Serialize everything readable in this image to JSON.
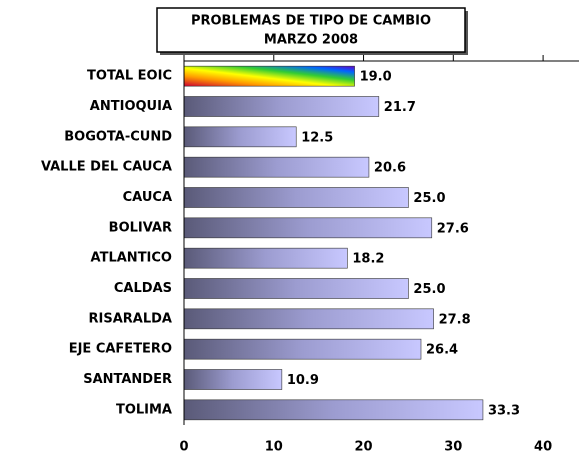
{
  "chart_data": {
    "type": "bar",
    "orientation": "horizontal",
    "title": "PROBLEMAS DE TIPO DE CAMBIO",
    "subtitle": "MARZO 2008",
    "categories": [
      "TOTAL EOIC",
      "ANTIOQUIA",
      "BOGOTA-CUND",
      "VALLE DEL CAUCA",
      "CAUCA",
      "BOLIVAR",
      "ATLANTICO",
      "CALDAS",
      "RISARALDA",
      "EJE CAFETERO",
      "SANTANDER",
      "TOLIMA"
    ],
    "values": [
      19.0,
      21.7,
      12.5,
      20.6,
      25.0,
      27.6,
      18.2,
      25.0,
      27.8,
      26.4,
      10.9,
      33.3
    ],
    "value_labels": [
      "19.0",
      "21.7",
      "12.5",
      "20.6",
      "25.0",
      "27.6",
      "18.2",
      "25.0",
      "27.8",
      "26.4",
      "10.9",
      "33.3"
    ],
    "colors": [
      "rainbow",
      "lavender",
      "lavender",
      "lavender",
      "lavender",
      "lavender",
      "lavender",
      "lavender",
      "lavender",
      "lavender",
      "lavender",
      "lavender"
    ],
    "xlim": [
      0,
      44
    ],
    "xticks": [
      0,
      10,
      20,
      30,
      40
    ]
  }
}
